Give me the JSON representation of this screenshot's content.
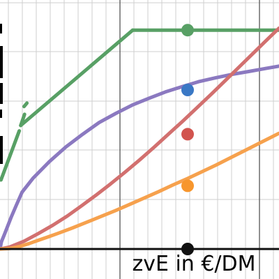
{
  "chart_data": {
    "type": "line",
    "xlabel": "zvE in €/DM",
    "ylabel": "",
    "grid": true,
    "x_domain": [
      0,
      58
    ],
    "y_domain": [
      0,
      51.2
    ],
    "series": [
      {
        "id": "green",
        "color": "#58a065",
        "segments": [
          [
            [
              0.2,
              14.2
            ],
            [
              4.0,
              24.3
            ]
          ],
          [
            [
              4.3,
              25.4
            ],
            [
              5.1,
              27.7
            ]
          ],
          [
            [
              5.0,
              29.3
            ],
            [
              5.6,
              30.0
            ]
          ],
          [
            [
              27.6,
              45.0
            ],
            [
              58.0,
              45.0
            ]
          ]
        ],
        "linear_from": [
          4.3,
          25.4
        ],
        "linear_to": [
          27.6,
          45.0
        ]
      },
      {
        "id": "purple",
        "color": "#8b79c0",
        "points": [
          [
            0,
            0
          ],
          [
            0.3,
            1.5
          ],
          [
            1.0,
            3.2
          ],
          [
            2.3,
            6.5
          ],
          [
            3.4,
            9.0
          ],
          [
            4.6,
            11.7
          ],
          [
            6.9,
            14.6
          ],
          [
            10.3,
            18.0
          ],
          [
            13.7,
            21.0
          ],
          [
            17.2,
            23.6
          ],
          [
            20.6,
            26.0
          ],
          [
            24.1,
            27.9
          ],
          [
            27.5,
            29.6
          ],
          [
            31.0,
            31.0
          ],
          [
            34.4,
            32.3
          ],
          [
            37.9,
            33.4
          ],
          [
            41.3,
            34.4
          ],
          [
            44.8,
            35.2
          ],
          [
            48.2,
            35.9
          ],
          [
            51.7,
            36.5
          ],
          [
            55.1,
            37.1
          ],
          [
            58.0,
            37.6
          ]
        ]
      },
      {
        "id": "red",
        "color": "#d2706f",
        "points": [
          [
            0,
            0
          ],
          [
            2.0,
            0.4
          ],
          [
            5.0,
            1.6
          ],
          [
            8.0,
            3.2
          ],
          [
            11.0,
            4.9
          ],
          [
            14.0,
            6.8
          ],
          [
            17.0,
            8.9
          ],
          [
            20.0,
            11.1
          ],
          [
            23.0,
            13.4
          ],
          [
            26.0,
            15.8
          ],
          [
            29.0,
            18.3
          ],
          [
            32.0,
            20.9
          ],
          [
            35.0,
            23.6
          ],
          [
            38.0,
            26.3
          ],
          [
            41.0,
            29.1
          ],
          [
            44.0,
            31.9
          ],
          [
            47.0,
            34.8
          ],
          [
            50.0,
            37.7
          ],
          [
            53.0,
            40.6
          ],
          [
            56.0,
            43.5
          ],
          [
            58.0,
            45.4
          ]
        ]
      },
      {
        "id": "orange",
        "color": "#f6a14d",
        "points": [
          [
            0,
            0
          ],
          [
            2.0,
            0.1
          ],
          [
            4.0,
            0.5
          ],
          [
            6.0,
            1.1
          ],
          [
            8.0,
            1.8
          ],
          [
            10.0,
            2.5
          ],
          [
            12.0,
            3.2
          ],
          [
            15.0,
            4.3
          ],
          [
            18.0,
            5.5
          ],
          [
            21.0,
            6.7
          ],
          [
            24.0,
            7.9
          ],
          [
            27.0,
            9.2
          ],
          [
            30.0,
            10.5
          ],
          [
            33.0,
            11.8
          ],
          [
            36.0,
            13.2
          ],
          [
            39.0,
            14.5
          ],
          [
            42.0,
            15.9
          ],
          [
            45.0,
            17.3
          ],
          [
            48.0,
            18.8
          ],
          [
            51.0,
            20.3
          ],
          [
            54.0,
            21.8
          ],
          [
            58.0,
            23.8
          ]
        ]
      }
    ],
    "markers": [
      {
        "id": "green-marker",
        "x": 39,
        "y": 45.0,
        "color": "#58a065"
      },
      {
        "id": "blue-marker",
        "x": 39,
        "y": 32.7,
        "color": "#3a78c5"
      },
      {
        "id": "red-marker",
        "x": 39,
        "y": 23.6,
        "color": "#d2544e"
      },
      {
        "id": "orange-marker",
        "x": 39,
        "y": 13.0,
        "color": "#f7962d"
      },
      {
        "id": "black-marker",
        "x": 39,
        "y": 0.0,
        "color": "#111111"
      }
    ],
    "colors": {
      "grid_minor": "#cfcfcf",
      "grid_major": "#555555",
      "axis": "#111111"
    }
  }
}
